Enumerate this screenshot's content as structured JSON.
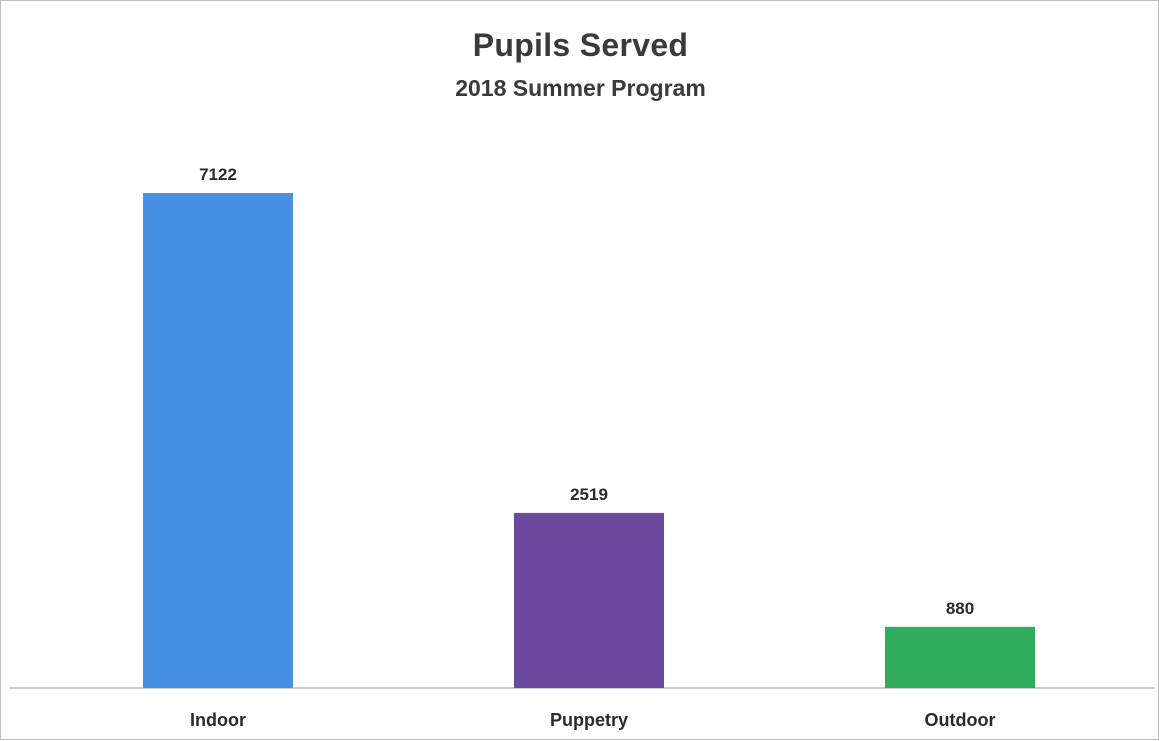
{
  "chart_data": {
    "type": "bar",
    "title": "Pupils Served",
    "subtitle": "2018 Summer Program",
    "categories": [
      "Indoor",
      "Puppetry",
      "Outdoor"
    ],
    "values": [
      7122,
      2519,
      880
    ],
    "colors": [
      "#4a90e2",
      "#6a4a9c",
      "#2fab5c"
    ],
    "data_labels": [
      "7122",
      "2519",
      "880"
    ],
    "ylim": [
      0,
      7122
    ],
    "grid": false,
    "legend": "none",
    "xlabel": "",
    "ylabel": ""
  }
}
